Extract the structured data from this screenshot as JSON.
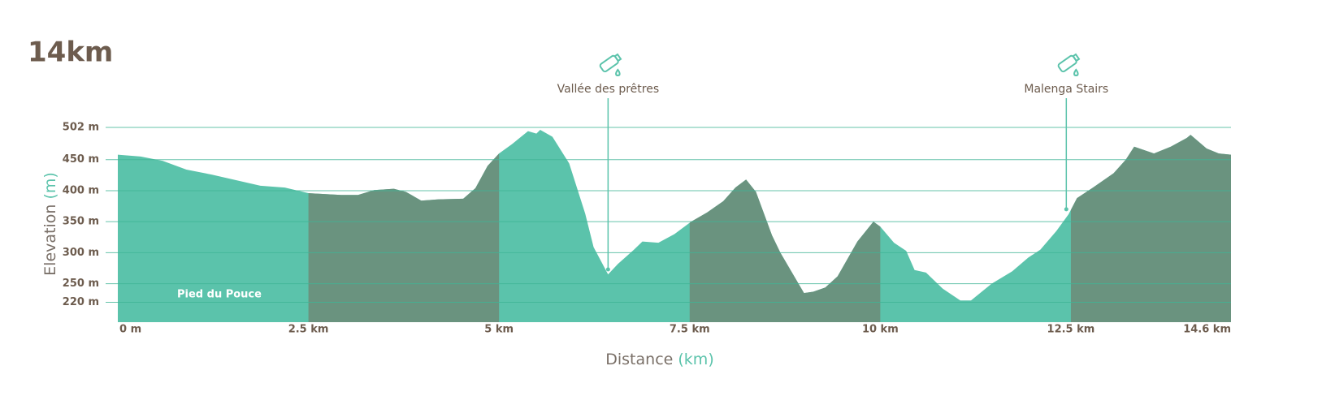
{
  "chart_data": {
    "type": "area",
    "title": "14km",
    "y_label": "Elevation",
    "y_unit": "(m)",
    "x_label": "Distance",
    "x_unit": "(km)",
    "x": [
      0,
      0.3,
      0.59,
      0.9,
      1.23,
      1.55,
      1.87,
      2.19,
      2.5,
      2.93,
      3.15,
      3.36,
      3.62,
      3.78,
      3.98,
      4.21,
      4.53,
      4.69,
      4.85,
      5.0,
      5.17,
      5.38,
      5.49,
      5.54,
      5.7,
      5.92,
      6.13,
      6.24,
      6.43,
      6.56,
      6.77,
      6.88,
      7.09,
      7.3,
      7.52,
      7.73,
      7.94,
      8.1,
      8.24,
      8.37,
      8.58,
      8.69,
      9.0,
      9.12,
      9.28,
      9.44,
      9.7,
      9.91,
      10.0,
      10.18,
      10.34,
      10.45,
      10.6,
      10.82,
      11.05,
      11.19,
      11.46,
      11.73,
      11.94,
      12.1,
      12.31,
      12.47,
      12.58,
      12.79,
      13.06,
      13.22,
      13.33,
      13.59,
      13.81,
      14.02,
      14.07,
      14.28,
      14.44,
      14.6
    ],
    "values": [
      458,
      455,
      448,
      434,
      426,
      417,
      408,
      405,
      396,
      393,
      393,
      401,
      403,
      398,
      384,
      386,
      387,
      404,
      440,
      460,
      475,
      496,
      492,
      498,
      487,
      444,
      363,
      309,
      265,
      282,
      305,
      318,
      316,
      330,
      350,
      365,
      383,
      405,
      418,
      398,
      328,
      300,
      235,
      237,
      244,
      262,
      318,
      350,
      342,
      316,
      303,
      272,
      268,
      242,
      223,
      223,
      250,
      270,
      292,
      305,
      335,
      362,
      388,
      405,
      428,
      450,
      471,
      460,
      471,
      485,
      490,
      468,
      460,
      458
    ],
    "color": "#5bc3ab",
    "band_color": "#6a937f",
    "grid_color": "#3fb596",
    "xlim": [
      0,
      14.6
    ],
    "ylim": [
      188,
      502
    ],
    "xticks": [
      {
        "value": 0,
        "label": "0 m"
      },
      {
        "value": 2.5,
        "label": "2.5 km"
      },
      {
        "value": 5,
        "label": "5 km"
      },
      {
        "value": 7.5,
        "label": "7.5 km"
      },
      {
        "value": 10,
        "label": "10 km"
      },
      {
        "value": 12.5,
        "label": "12.5 km"
      },
      {
        "value": 14.6,
        "label": "14.6 km"
      }
    ],
    "yticks": [
      {
        "value": 502,
        "label": "502 m"
      },
      {
        "value": 450,
        "label": "450 m"
      },
      {
        "value": 400,
        "label": "400 m"
      },
      {
        "value": 350,
        "label": "350 m"
      },
      {
        "value": 300,
        "label": "300 m"
      },
      {
        "value": 250,
        "label": "250 m"
      },
      {
        "value": 220,
        "label": "220 m"
      }
    ],
    "grid": true,
    "area_label": "Pied du Pouce",
    "annotations": [
      {
        "text": "Vallée des prêtres",
        "x": 6.43,
        "y": 273
      },
      {
        "text": "Malenga Stairs",
        "x": 12.44,
        "y": 370
      }
    ]
  }
}
